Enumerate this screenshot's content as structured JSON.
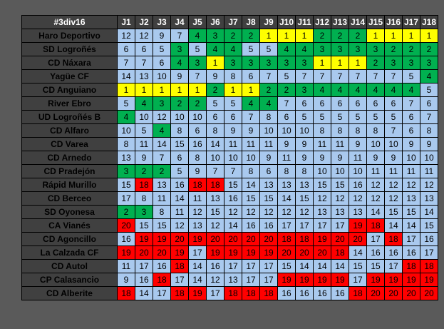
{
  "chart_data": {
    "type": "table",
    "title": "#3div16",
    "columns": [
      "J1",
      "J2",
      "J3",
      "J4",
      "J5",
      "J6",
      "J7",
      "J8",
      "J9",
      "J10",
      "J11",
      "J12",
      "J13",
      "J14",
      "J15",
      "J16",
      "J17",
      "J18"
    ],
    "teams": [
      "Haro Deportivo",
      "SD Logroñés",
      "CD Náxara",
      "Yagüe CF",
      "CD Anguiano",
      "River Ebro",
      "UD Logroñés B",
      "CD Alfaro",
      "CD Varea",
      "CD Arnedo",
      "CD Pradejón",
      "Rápid Murillo",
      "CD Berceo",
      "SD Oyonesa",
      "CA Vianés",
      "CD Agoncillo",
      "La Calzada CF",
      "CD Autol",
      "CP Calasancio",
      "CD Alberite"
    ],
    "positions": [
      [
        12,
        12,
        9,
        7,
        4,
        3,
        2,
        2,
        1,
        1,
        1,
        2,
        2,
        2,
        1,
        1,
        1,
        1
      ],
      [
        6,
        6,
        5,
        3,
        5,
        4,
        4,
        5,
        5,
        4,
        4,
        3,
        3,
        3,
        3,
        2,
        2,
        2
      ],
      [
        7,
        7,
        6,
        4,
        3,
        1,
        3,
        3,
        3,
        3,
        3,
        1,
        1,
        1,
        2,
        3,
        3,
        3
      ],
      [
        14,
        13,
        10,
        9,
        7,
        9,
        8,
        6,
        7,
        5,
        7,
        7,
        7,
        7,
        7,
        7,
        5,
        4
      ],
      [
        1,
        1,
        1,
        1,
        1,
        2,
        1,
        1,
        2,
        2,
        3,
        4,
        4,
        4,
        4,
        4,
        4,
        5
      ],
      [
        5,
        4,
        3,
        2,
        2,
        5,
        5,
        4,
        4,
        7,
        6,
        6,
        6,
        6,
        6,
        6,
        7,
        6
      ],
      [
        4,
        10,
        12,
        10,
        10,
        6,
        6,
        7,
        8,
        6,
        5,
        5,
        5,
        5,
        5,
        5,
        6,
        7
      ],
      [
        10,
        5,
        4,
        8,
        6,
        8,
        9,
        9,
        10,
        10,
        10,
        8,
        8,
        8,
        8,
        7,
        6,
        8
      ],
      [
        8,
        11,
        14,
        15,
        16,
        14,
        11,
        11,
        11,
        9,
        9,
        11,
        11,
        9,
        10,
        10,
        9,
        9
      ],
      [
        13,
        9,
        7,
        6,
        8,
        10,
        10,
        10,
        9,
        11,
        9,
        9,
        9,
        11,
        9,
        9,
        10,
        10
      ],
      [
        3,
        2,
        2,
        5,
        9,
        7,
        7,
        8,
        6,
        8,
        8,
        10,
        10,
        10,
        11,
        11,
        11,
        11
      ],
      [
        15,
        18,
        13,
        16,
        18,
        18,
        15,
        14,
        13,
        13,
        13,
        15,
        15,
        16,
        12,
        12,
        12,
        12
      ],
      [
        17,
        8,
        11,
        14,
        11,
        13,
        16,
        15,
        15,
        14,
        15,
        12,
        12,
        12,
        12,
        12,
        13,
        13
      ],
      [
        2,
        3,
        8,
        11,
        12,
        15,
        12,
        12,
        12,
        12,
        12,
        13,
        13,
        13,
        14,
        15,
        15,
        14
      ],
      [
        20,
        15,
        15,
        12,
        13,
        12,
        14,
        16,
        16,
        17,
        17,
        17,
        17,
        19,
        18,
        14,
        14,
        15
      ],
      [
        16,
        19,
        19,
        20,
        19,
        20,
        20,
        20,
        20,
        18,
        18,
        19,
        20,
        20,
        17,
        18,
        17,
        16
      ],
      [
        19,
        20,
        20,
        19,
        17,
        19,
        19,
        19,
        19,
        20,
        20,
        20,
        18,
        14,
        16,
        16,
        16,
        17
      ],
      [
        11,
        17,
        16,
        18,
        14,
        16,
        17,
        17,
        17,
        15,
        14,
        14,
        14,
        15,
        15,
        17,
        18,
        18
      ],
      [
        9,
        16,
        18,
        17,
        14,
        12,
        13,
        17,
        17,
        19,
        19,
        19,
        19,
        17,
        19,
        19,
        19,
        19
      ],
      [
        18,
        14,
        17,
        18,
        19,
        17,
        18,
        18,
        18,
        16,
        16,
        16,
        16,
        18,
        20,
        20,
        20,
        20
      ]
    ]
  },
  "colors": {
    "first": "#ffff00",
    "promotion": "#00b050",
    "relegation": "#ff0000",
    "mid": "#a9c9ee",
    "header": "#404040"
  }
}
